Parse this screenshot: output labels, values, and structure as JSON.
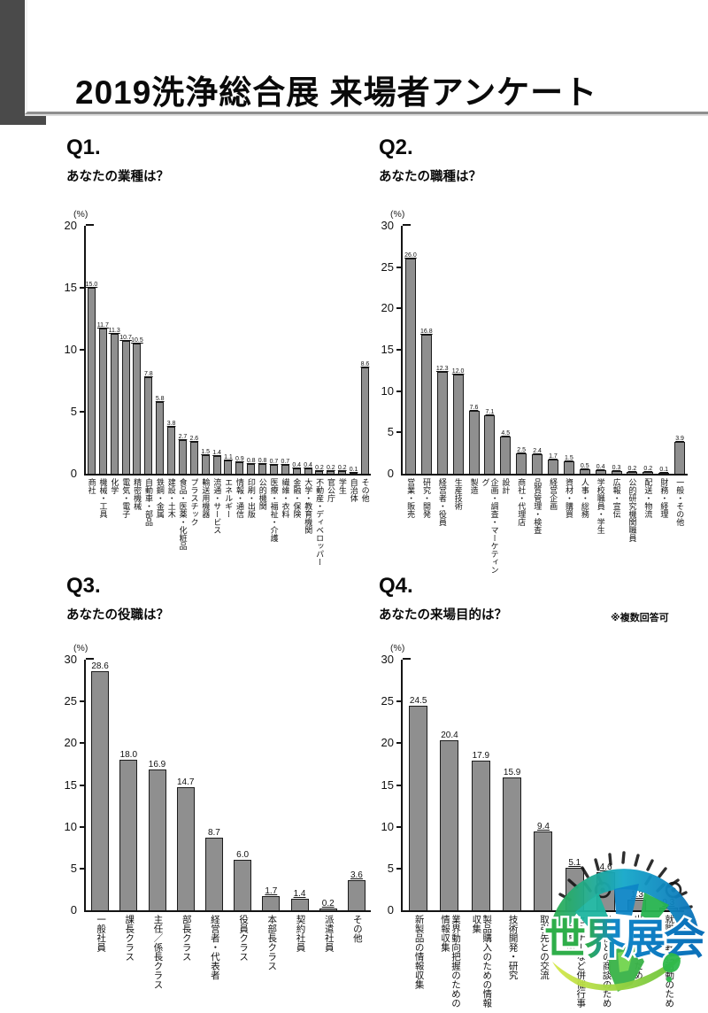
{
  "page": {
    "title": "2019洗浄総合展 来場者アンケート"
  },
  "watermark": {
    "text": "世界展会"
  },
  "chart_data": [
    {
      "type": "bar",
      "id": "q1",
      "heading": "Q1.",
      "title": "あなたの業種は？",
      "note": "",
      "unit": "(%)",
      "ylabel": "%",
      "ylim": [
        0,
        20
      ],
      "yticks": [
        0,
        5,
        10,
        15,
        20
      ],
      "grid": false,
      "categories": [
        "商社",
        "機械・工具",
        "化学",
        "電気・電子",
        "精密機械",
        "自動車・部品",
        "鉄鋼・金属",
        "建設・土木",
        "食品・医薬・化粧品",
        "プラスチック",
        "輸送用機器",
        "流通・サービス",
        "エネルギー",
        "情報・通信",
        "印刷・出版",
        "公的機関",
        "医療・福祉・介護",
        "繊維・衣料",
        "金融・保険",
        "大学・教育機関",
        "不動産・ディベロッパー",
        "官公庁",
        "学生",
        "自治体",
        "その他"
      ],
      "values": [
        15.0,
        11.7,
        11.3,
        10.7,
        10.5,
        7.8,
        5.8,
        3.8,
        2.7,
        2.6,
        1.5,
        1.4,
        1.1,
        0.9,
        0.8,
        0.8,
        0.7,
        0.7,
        0.4,
        0.4,
        0.2,
        0.2,
        0.2,
        0.1,
        8.6
      ]
    },
    {
      "type": "bar",
      "id": "q2",
      "heading": "Q2.",
      "title": "あなたの職種は？",
      "note": "",
      "unit": "(%)",
      "ylabel": "%",
      "ylim": [
        0,
        30
      ],
      "yticks": [
        0,
        5,
        10,
        15,
        20,
        25,
        30
      ],
      "grid": false,
      "categories": [
        "営業・販売",
        "研究・開発",
        "経営者・役員",
        "生産技術",
        "製造",
        "企画・調査・マーケティング",
        "設計",
        "商社・代理店",
        "品質管理・検査",
        "経営企画",
        "資材・購買",
        "人事・総務",
        "学校職員・学生",
        "広報・宣伝",
        "公的研究機関職員",
        "配送・物流",
        "財務・経理",
        "一般・その他"
      ],
      "values": [
        26.0,
        16.8,
        12.3,
        12.0,
        7.6,
        7.1,
        4.5,
        2.5,
        2.4,
        1.7,
        1.5,
        0.5,
        0.4,
        0.3,
        0.2,
        0.2,
        0.1,
        3.9
      ]
    },
    {
      "type": "bar",
      "id": "q3",
      "heading": "Q3.",
      "title": "あなたの役職は？",
      "note": "",
      "unit": "(%)",
      "ylabel": "%",
      "ylim": [
        0,
        30
      ],
      "yticks": [
        0,
        5,
        10,
        15,
        20,
        25,
        30
      ],
      "grid": false,
      "categories": [
        "一般社員",
        "課長クラス",
        "主任／係長クラス",
        "部長クラス",
        "経営者・代表者",
        "役員クラス",
        "本部長クラス",
        "契約社員",
        "派遣社員",
        "その他"
      ],
      "values": [
        28.6,
        18.0,
        16.9,
        14.7,
        8.7,
        6.0,
        1.7,
        1.4,
        0.2,
        3.6
      ]
    },
    {
      "type": "bar",
      "id": "q4",
      "heading": "Q4.",
      "title": "あなたの来場目的は？",
      "note": "※複数回答可",
      "unit": "(%)",
      "ylabel": "%",
      "ylim": [
        0,
        30
      ],
      "yticks": [
        0,
        5,
        10,
        15,
        20,
        25,
        30
      ],
      "grid": false,
      "categories": [
        "新製品の情報収集",
        "業界動向把握のための情報収集",
        "製品購入のための情報収集",
        "技術開発・研究",
        "取引先との交流",
        "セミナーなど併催行事への参加",
        "出展社との商談のため",
        "出展検討のため",
        "就職・転職活動のため"
      ],
      "values": [
        24.5,
        20.4,
        17.9,
        15.9,
        9.4,
        5.1,
        4.6,
        1.3,
        0.3
      ]
    }
  ]
}
